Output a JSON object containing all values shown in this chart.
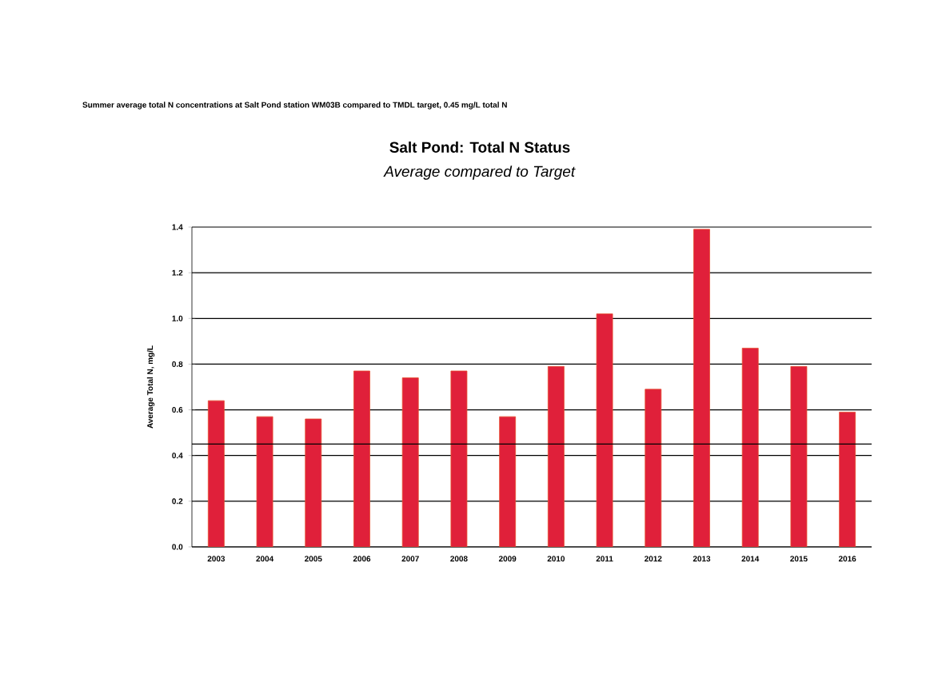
{
  "chart_data": {
    "type": "bar",
    "title": "Salt Pond: Total N Status",
    "subtitle": "*Average compared to Target*",
    "ylabel": "Average Total N, mg/L",
    "annotations": [
      "Summer average total N concentrations at Salt Pond station WM03B compared to TMDL target, 0.45 mg/L total N"
    ],
    "categories": [
      "2003",
      "2004",
      "2005",
      "2006",
      "2007",
      "2008",
      "2009",
      "2010",
      "2011",
      "2012",
      "2013",
      "2014",
      "2015",
      "2016"
    ],
    "values": [
      0.64,
      0.57,
      0.56,
      0.77,
      0.74,
      0.77,
      0.57,
      0.79,
      1.02,
      0.69,
      1.39,
      0.87,
      0.79,
      0.59
    ],
    "color": "#e0203a",
    "ylim": [
      0,
      1.4
    ],
    "yticks": [
      {
        "value": 0,
        "label": "0.0"
      },
      {
        "value": 0.2,
        "label": "0.2"
      },
      {
        "value": 0.4,
        "label": "0.4"
      },
      {
        "value": 0.6,
        "label": "0.6"
      },
      {
        "value": 0.8,
        "label": "0.8"
      },
      {
        "value": 1.0,
        "label": "1.0"
      },
      {
        "value": 1.2,
        "label": "1.2"
      },
      {
        "value": 1.4,
        "label": "1.4"
      }
    ],
    "grid": "y",
    "ref_lines": [
      {
        "axis": "y",
        "value": 0.45,
        "color": "#000000"
      }
    ]
  }
}
